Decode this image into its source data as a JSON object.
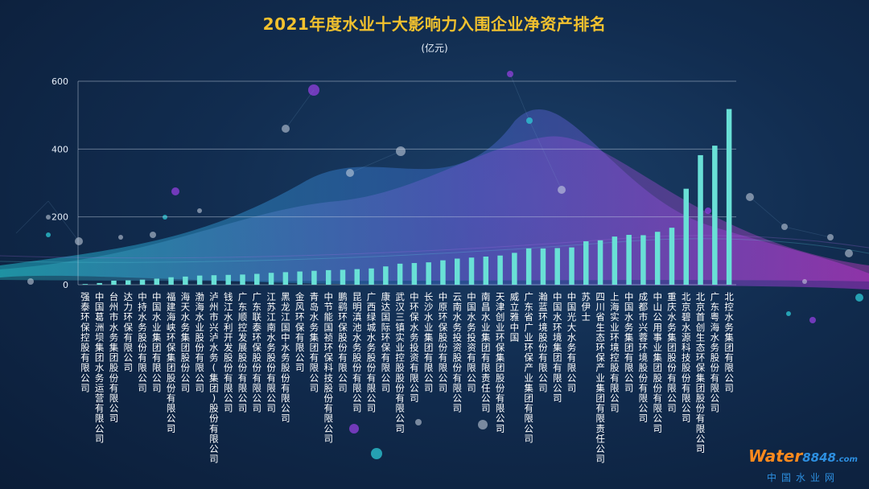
{
  "chart_data": {
    "type": "bar",
    "title": "2021年度水业十大影响力入围企业净资产排名",
    "unit": "(亿元)",
    "ylim": [
      0,
      600
    ],
    "yticks": [
      0,
      200,
      400,
      600
    ],
    "grid": true,
    "bar_color": "#69e0d6",
    "categories": [
      "强泰环保控股有限公司",
      "中国葛洲坝集团水务运营有限公司",
      "台州市水务集团股份有限公司",
      "达力环保有限公司",
      "中持水务股份有限公司",
      "中国水业集团有限公司",
      "福建海峡环保集团股份有限公司",
      "海天水务集团股份公司",
      "渤海水业股份有限公司",
      "泸州市兴泸水务(集团)股份有限公司",
      "钱江水利开发股份有限公司",
      "广东顺控发展股份有限公司",
      "广东联泰环保股份有限公司",
      "江苏江南水务股份有限公司",
      "黑龙江国中水务股份有限公司",
      "金风环保有限公司",
      "青岛水务集团有限公司",
      "中节能国祯环保科技股份有限公司",
      "鹏鹞环保股份有限公司",
      "昆明滇池水务股份有限公司",
      "广西绿城水务股份有限公司",
      "康达国际环保有限公司",
      "武汉三镇实业控股股份有限公司",
      "中环保水务投资有限公司",
      "长沙水业集团有限公司",
      "中原环保股份有限公司",
      "云南水务投资股份有限公司",
      "中国水务投资有限公司",
      "南昌水业集团有限责任公司",
      "天津创业环保集团股份有限公司",
      "威立雅中国",
      "广东省广业环保产业集团有限公司",
      "瀚蓝环境股份有限公司",
      "中国水环境集团有限公司",
      "中国光大水务有限公司",
      "苏伊士",
      "四川省生态环保产业集团有限责任公司",
      "上海实业环境控股有限公司",
      "中国水务集团有限公司",
      "成都市兴蓉环境股份有限公司",
      "中山公用事业集团股份有限公司",
      "重庆水务集团股份有限公司",
      "北京碧水源科技股份有限公司",
      "北京首创生态环保集团股份有限公司",
      "广东粤海水务股份有限公司",
      "北控水务集团有限公司"
    ],
    "values": [
      2,
      5,
      12,
      13,
      15,
      18,
      22,
      24,
      27,
      28,
      29,
      30,
      32,
      35,
      37,
      39,
      41,
      43,
      44,
      46,
      48,
      54,
      62,
      64,
      66,
      72,
      77,
      80,
      83,
      86,
      94,
      107,
      107,
      108,
      110,
      128,
      131,
      142,
      147,
      146,
      156,
      168,
      283,
      382,
      410,
      518
    ]
  },
  "logo": {
    "brand_main": "Water",
    "brand_num": "8848",
    "brand_dom": ".com",
    "brand_cn": "中国水业网"
  }
}
